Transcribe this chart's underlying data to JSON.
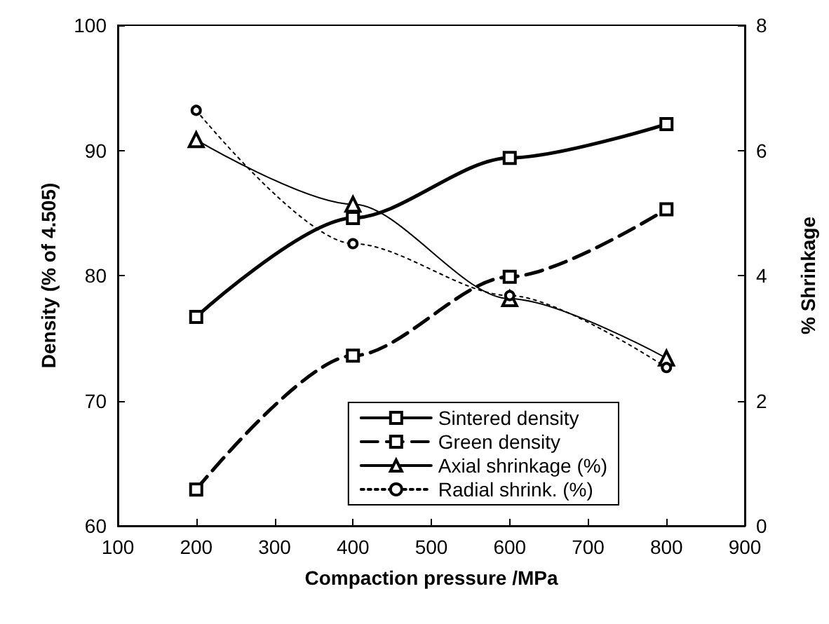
{
  "chart_data": {
    "type": "line",
    "xlabel": "Compaction pressure /MPa",
    "ylabel": "Density (% of 4.505)",
    "y2label": "% Shrinkage",
    "x": [
      200,
      400,
      600,
      800
    ],
    "series": [
      {
        "name": "Sintered density",
        "color": "#000000",
        "values": [
          76.7,
          84.6,
          89.4,
          92.1
        ],
        "marker": "square",
        "line_style": "solid"
      },
      {
        "name": "Green density",
        "color": "#000000",
        "values": [
          62.9,
          73.6,
          79.9,
          85.3
        ],
        "marker": "square",
        "line_style": "dashed"
      },
      {
        "name": "Axial shrinkage (%)",
        "color": "#000000",
        "values": [
          6.17,
          5.14,
          3.63,
          2.68
        ],
        "marker": "triangle",
        "line_style": "solid",
        "axis": "y2"
      },
      {
        "name": "Radial shrink. (%)",
        "color": "#000000",
        "values": [
          6.64,
          4.51,
          3.68,
          2.53
        ],
        "marker": "circle",
        "line_style": "dotted",
        "axis": "y2"
      }
    ],
    "xlim": [
      100,
      900
    ],
    "xticks": [
      100,
      200,
      300,
      400,
      500,
      600,
      700,
      800,
      900
    ],
    "ylim": [
      60,
      100
    ],
    "yticks": [
      60,
      70,
      80,
      90,
      100
    ],
    "y2lim": [
      0,
      8
    ],
    "y2ticks": [
      0,
      2,
      4,
      6,
      8
    ],
    "grid": false,
    "legend": "bottom right"
  }
}
